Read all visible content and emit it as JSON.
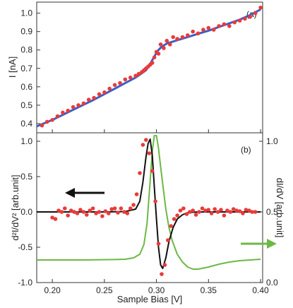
{
  "colors": {
    "data_points": "#e83b3b",
    "fit_curve_top": "#3a5fc8",
    "fit_curve_bottom": "#111111",
    "didv_curve": "#6cb846",
    "frame": "#333333"
  },
  "icons": {
    "left_arrow": "arrow-left-icon",
    "right_arrow": "arrow-right-icon"
  },
  "chart_data": [
    {
      "panel": "(a)",
      "type": "scatter",
      "xlabel": "",
      "ylabel": "I [nA]",
      "xlim": [
        0.185,
        0.402
      ],
      "ylim": [
        0.35,
        1.06
      ],
      "yticks": [
        "0.4",
        "0.5",
        "0.6",
        "0.7",
        "0.8",
        "0.9",
        "1.0"
      ],
      "series": [
        {
          "kind": "points",
          "x": [
            0.19,
            0.195,
            0.2,
            0.205,
            0.21,
            0.215,
            0.22,
            0.225,
            0.23,
            0.235,
            0.24,
            0.245,
            0.25,
            0.255,
            0.26,
            0.265,
            0.27,
            0.275,
            0.28,
            0.283,
            0.286,
            0.288,
            0.29,
            0.292,
            0.294,
            0.296,
            0.298,
            0.3,
            0.302,
            0.304,
            0.307,
            0.31,
            0.313,
            0.316,
            0.32,
            0.325,
            0.33,
            0.335,
            0.34,
            0.345,
            0.35,
            0.355,
            0.36,
            0.365,
            0.37,
            0.375,
            0.38,
            0.385,
            0.39,
            0.395,
            0.4
          ],
          "y": [
            0.39,
            0.41,
            0.42,
            0.44,
            0.46,
            0.47,
            0.49,
            0.5,
            0.51,
            0.53,
            0.54,
            0.56,
            0.57,
            0.59,
            0.61,
            0.62,
            0.64,
            0.65,
            0.66,
            0.67,
            0.68,
            0.69,
            0.7,
            0.71,
            0.72,
            0.73,
            0.76,
            0.79,
            0.78,
            0.83,
            0.81,
            0.85,
            0.83,
            0.87,
            0.86,
            0.87,
            0.88,
            0.9,
            0.89,
            0.91,
            0.92,
            0.91,
            0.93,
            0.94,
            0.93,
            0.95,
            0.96,
            0.97,
            0.98,
            1.0,
            1.03
          ]
        },
        {
          "kind": "fit",
          "x": [
            0.185,
            0.2,
            0.22,
            0.24,
            0.26,
            0.27,
            0.28,
            0.285,
            0.29,
            0.293,
            0.296,
            0.299,
            0.302,
            0.305,
            0.31,
            0.32,
            0.33,
            0.34,
            0.35,
            0.36,
            0.37,
            0.38,
            0.39,
            0.4
          ],
          "y": [
            0.385,
            0.42,
            0.475,
            0.53,
            0.59,
            0.62,
            0.65,
            0.67,
            0.69,
            0.715,
            0.745,
            0.775,
            0.8,
            0.818,
            0.835,
            0.853,
            0.87,
            0.888,
            0.905,
            0.925,
            0.945,
            0.965,
            0.99,
            1.02
          ]
        }
      ],
      "panel_label": "(a)"
    },
    {
      "panel": "(b)",
      "type": "line",
      "xlabel": "Sample Bias [V]",
      "ylabel": "d²I/dV² [arb.unit]",
      "ylabel_right": "dI/dV [arb.unit]",
      "xlim": [
        0.185,
        0.402
      ],
      "ylim": [
        -1.0,
        1.12
      ],
      "ylim_right": [
        0.0,
        1.06
      ],
      "xticks": [
        "0.20",
        "0.25",
        "0.30",
        "0.35",
        "0.40"
      ],
      "yticks": [
        "1.0",
        "0.5",
        "0.0",
        "-0.5",
        "-1.0"
      ],
      "yticks_right": [
        "1.0",
        "0.5",
        "0.0"
      ],
      "series": [
        {
          "kind": "points",
          "x": [
            0.2,
            0.203,
            0.206,
            0.209,
            0.212,
            0.215,
            0.218,
            0.221,
            0.224,
            0.227,
            0.23,
            0.233,
            0.236,
            0.239,
            0.242,
            0.245,
            0.248,
            0.251,
            0.254,
            0.257,
            0.26,
            0.263,
            0.266,
            0.269,
            0.272,
            0.275,
            0.278,
            0.281,
            0.284,
            0.287,
            0.29,
            0.293,
            0.296,
            0.299,
            0.302,
            0.305,
            0.308,
            0.311,
            0.314,
            0.317,
            0.32,
            0.323,
            0.326,
            0.329,
            0.332,
            0.335,
            0.338,
            0.341,
            0.344,
            0.347,
            0.35,
            0.353,
            0.356,
            0.359,
            0.362,
            0.365,
            0.368,
            0.371,
            0.374,
            0.377,
            0.38,
            0.383,
            0.386,
            0.389,
            0.392,
            0.395
          ],
          "y": [
            -0.08,
            -0.1,
            0.02,
            0.0,
            0.05,
            -0.05,
            0.02,
            0.0,
            -0.02,
            0.03,
            0.0,
            -0.04,
            0.02,
            0.05,
            -0.02,
            0.0,
            -0.06,
            0.01,
            -0.02,
            0.04,
            0.05,
            -0.01,
            0.05,
            0.0,
            -0.02,
            0.05,
            0.1,
            0.25,
            0.55,
            0.95,
            1.02,
            0.83,
            0.58,
            0.15,
            -0.45,
            -0.88,
            -0.75,
            -0.4,
            -0.2,
            -0.1,
            -0.05,
            0.02,
            0.05,
            -0.03,
            0.0,
            0.02,
            -0.04,
            0.0,
            0.05,
            0.02,
            0.03,
            -0.02,
            0.04,
            0.0,
            0.03,
            -0.05,
            0.02,
            0.0,
            0.04,
            0.02,
            0.01,
            -0.02,
            0.03,
            0.02,
            0.0,
            0.0
          ]
        },
        {
          "kind": "fit",
          "x": [
            0.185,
            0.25,
            0.27,
            0.28,
            0.284,
            0.287,
            0.29,
            0.292,
            0.294,
            0.296,
            0.298,
            0.3,
            0.302,
            0.304,
            0.306,
            0.309,
            0.312,
            0.316,
            0.32,
            0.325,
            0.33,
            0.34,
            0.36,
            0.4
          ],
          "y": [
            0.0,
            0.0,
            0.005,
            0.04,
            0.15,
            0.42,
            0.78,
            0.97,
            1.03,
            0.8,
            0.35,
            -0.1,
            -0.5,
            -0.75,
            -0.8,
            -0.65,
            -0.42,
            -0.22,
            -0.1,
            -0.04,
            -0.01,
            0.0,
            0.0,
            0.0
          ]
        },
        {
          "kind": "didv",
          "axis": "right",
          "x": [
            0.185,
            0.23,
            0.26,
            0.27,
            0.278,
            0.284,
            0.288,
            0.291,
            0.294,
            0.296,
            0.298,
            0.3,
            0.302,
            0.304,
            0.306,
            0.309,
            0.312,
            0.315,
            0.32,
            0.325,
            0.33,
            0.335,
            0.34,
            0.35,
            0.36,
            0.37,
            0.38,
            0.39,
            0.4
          ],
          "y": [
            0.16,
            0.16,
            0.163,
            0.165,
            0.175,
            0.2,
            0.27,
            0.42,
            0.72,
            0.93,
            1.04,
            1.04,
            0.95,
            0.82,
            0.7,
            0.52,
            0.39,
            0.3,
            0.2,
            0.145,
            0.11,
            0.095,
            0.095,
            0.11,
            0.13,
            0.145,
            0.155,
            0.16,
            0.165
          ]
        }
      ],
      "panel_label": "(b)"
    }
  ]
}
